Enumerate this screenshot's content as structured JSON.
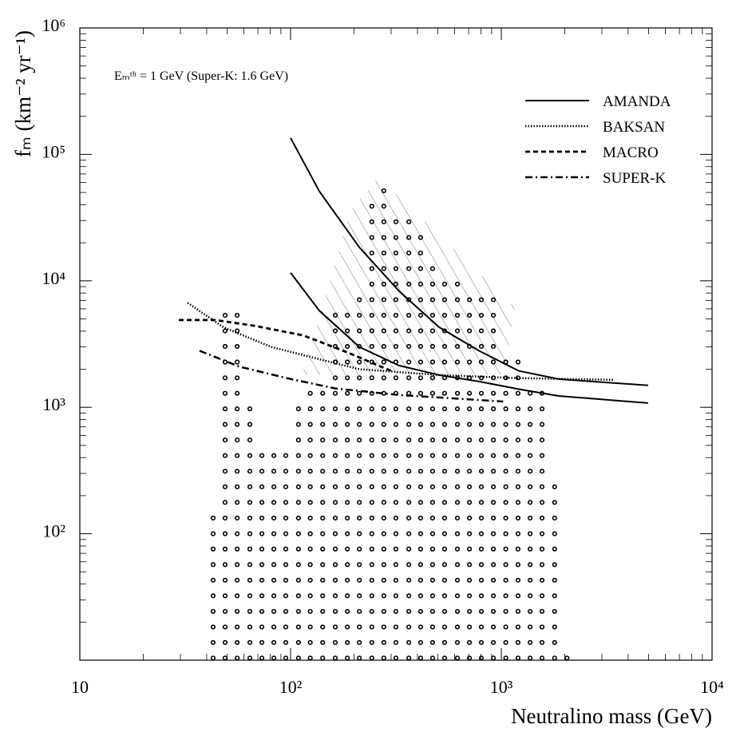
{
  "chart_data": {
    "type": "line",
    "log_x": true,
    "log_y": true,
    "xlabel": "Neutralino mass (GeV)",
    "ylabel": "fₘ (km⁻² yr⁻¹)",
    "annotation": "Eₘᵗʰ = 1 GeV (Super-K: 1.6 GeV)",
    "xlim": [
      10,
      10000
    ],
    "ylim": [
      10,
      1000000
    ],
    "xticks": [
      10,
      {
        "value": 100,
        "label": "10²"
      },
      {
        "value": 1000,
        "label": "10³"
      },
      {
        "value": 10000,
        "label": "10⁴"
      }
    ],
    "yticks": [
      {
        "value": 100,
        "label": "10²"
      },
      {
        "value": 1000,
        "label": "10³"
      },
      {
        "value": 10000,
        "label": "10⁴"
      },
      {
        "value": 100000,
        "label": "10⁵"
      },
      {
        "value": 1000000,
        "label": "10⁶"
      }
    ],
    "legend": "upper right",
    "series": [
      {
        "name": "AMANDA",
        "color": "#000000",
        "style": "solid",
        "x": [
          100,
          137,
          212,
          327,
          507,
          783,
          1210,
          1870,
          4970,
          null,
          100,
          137,
          212,
          327,
          507,
          783,
          1210,
          1870,
          4970
        ],
        "values": [
          135000,
          51000,
          18400,
          8300,
          4300,
          2800,
          1940,
          1670,
          1490,
          null,
          11600,
          5800,
          3000,
          2140,
          1800,
          1600,
          1390,
          1230,
          1080
        ]
      },
      {
        "name": "BAKSAN",
        "color": "#000000",
        "style": "dotted",
        "x": [
          32.5,
          48,
          81,
          137,
          212,
          507,
          1210,
          3450
        ],
        "values": [
          6700,
          4300,
          3000,
          2400,
          2000,
          1800,
          1700,
          1650
        ]
      },
      {
        "name": "MACRO",
        "color": "#000000",
        "style": "dashed",
        "x": [
          29.5,
          44,
          68,
          115,
          178,
          300
        ],
        "values": [
          4900,
          4900,
          4400,
          3700,
          2800,
          1940
        ]
      },
      {
        "name": "SUPER-K",
        "color": "#000000",
        "style": "dashdot",
        "x": [
          37,
          57,
          96,
          163,
          327,
          1020
        ],
        "values": [
          2800,
          2100,
          1700,
          1410,
          1250,
          1110
        ]
      }
    ],
    "dots": [
      {
        "x": 42.9,
        "y": [
          10.4,
          13.8,
          18.3,
          24.3,
          32.3,
          42.9,
          57,
          75.7,
          100,
          133
        ]
      },
      {
        "x": 48.9,
        "y": [
          10.4,
          13.8,
          18.3,
          24.3,
          32.3,
          42.9,
          57,
          75.7,
          100,
          133,
          177,
          235,
          312,
          415,
          551,
          732,
          972,
          1290,
          1710,
          2280,
          3030,
          4020,
          5340
        ]
      },
      {
        "x": 55.8,
        "y": [
          10.4,
          13.8,
          18.3,
          24.3,
          32.3,
          42.9,
          57,
          75.7,
          100,
          133,
          177,
          235,
          312,
          415,
          551,
          732,
          972,
          1290,
          1710,
          2280,
          3030,
          4020,
          5340
        ]
      },
      {
        "x": 64.1,
        "y": [
          10.4,
          13.8,
          18.3,
          24.3,
          32.3,
          42.9,
          57,
          75.7,
          100,
          133,
          177,
          235,
          312,
          415,
          551,
          732,
          972
        ]
      },
      {
        "x": 73.1,
        "y": [
          10.4,
          13.8,
          18.3,
          24.3,
          32.3,
          42.9,
          57,
          75.7,
          100,
          133,
          177,
          235,
          312,
          415
        ]
      },
      {
        "x": 83.3,
        "y": [
          10.4,
          13.8,
          18.3,
          24.3,
          32.3,
          42.9,
          57,
          75.7,
          100,
          133,
          177,
          235,
          312,
          415
        ]
      },
      {
        "x": 94.9,
        "y": [
          10.4,
          13.8,
          18.3,
          24.3,
          32.3,
          42.9,
          57,
          75.7,
          100,
          133,
          177,
          235,
          312,
          415
        ]
      },
      {
        "x": 109,
        "y": [
          10.4,
          13.8,
          18.3,
          24.3,
          32.3,
          42.9,
          57,
          75.7,
          100,
          133,
          177,
          235,
          312,
          415,
          551,
          732,
          972
        ]
      },
      {
        "x": 124,
        "y": [
          10.4,
          13.8,
          18.3,
          24.3,
          32.3,
          42.9,
          57,
          75.7,
          100,
          133,
          177,
          235,
          312,
          415,
          551,
          732,
          972,
          1290
        ]
      },
      {
        "x": 142,
        "y": [
          10.4,
          13.8,
          18.3,
          24.3,
          32.3,
          42.9,
          57,
          75.7,
          100,
          133,
          177,
          235,
          312,
          415,
          551,
          732,
          972,
          1290
        ]
      },
      {
        "x": 163,
        "y": [
          10.4,
          13.8,
          18.3,
          24.3,
          32.3,
          42.9,
          57,
          75.7,
          100,
          133,
          177,
          235,
          312,
          415,
          551,
          732,
          972,
          1290,
          1710,
          2280,
          3030,
          4020,
          5340
        ]
      },
      {
        "x": 186,
        "y": [
          10.4,
          13.8,
          18.3,
          24.3,
          32.3,
          42.9,
          57,
          75.7,
          100,
          133,
          177,
          235,
          312,
          415,
          551,
          732,
          972,
          1290,
          1710,
          2280,
          3030,
          4020,
          5340
        ]
      },
      {
        "x": 212,
        "y": [
          10.4,
          13.8,
          18.3,
          24.3,
          32.3,
          42.9,
          57,
          75.7,
          100,
          133,
          177,
          235,
          312,
          415,
          551,
          732,
          972,
          1290,
          1710,
          2280,
          3030,
          4020,
          5340,
          7090
        ]
      },
      {
        "x": 243,
        "y": [
          10.4,
          13.8,
          18.3,
          24.3,
          32.3,
          42.9,
          57,
          75.7,
          100,
          133,
          177,
          235,
          312,
          415,
          551,
          732,
          972,
          1290,
          1710,
          2280,
          3030,
          4020,
          5340,
          7090,
          9420,
          12500,
          16600,
          22000,
          29300,
          38900
        ]
      },
      {
        "x": 277,
        "y": [
          10.4,
          13.8,
          18.3,
          24.3,
          32.3,
          42.9,
          57,
          75.7,
          100,
          133,
          177,
          235,
          312,
          415,
          551,
          732,
          972,
          1290,
          1710,
          2280,
          3030,
          4020,
          5340,
          7090,
          9420,
          12500,
          16600,
          22000,
          29300,
          38900,
          51600
        ]
      },
      {
        "x": 316,
        "y": [
          10.4,
          13.8,
          18.3,
          24.3,
          32.3,
          42.9,
          57,
          75.7,
          100,
          133,
          177,
          235,
          312,
          415,
          551,
          732,
          972,
          1290,
          1710,
          2280,
          3030,
          4020,
          5340,
          7090,
          9420,
          12500,
          16600,
          22000,
          29300
        ]
      },
      {
        "x": 364,
        "y": [
          10.4,
          13.8,
          18.3,
          24.3,
          32.3,
          42.9,
          57,
          75.7,
          100,
          133,
          177,
          235,
          312,
          415,
          551,
          732,
          972,
          1290,
          1710,
          2280,
          3030,
          4020,
          5340,
          7090,
          9420,
          12500,
          16600,
          22000,
          29300
        ]
      },
      {
        "x": 414,
        "y": [
          10.4,
          13.8,
          18.3,
          24.3,
          32.3,
          42.9,
          57,
          75.7,
          100,
          133,
          177,
          235,
          312,
          415,
          551,
          732,
          972,
          1290,
          1710,
          2280,
          3030,
          4020,
          5340,
          7090,
          9420,
          12500,
          16600,
          22000
        ]
      },
      {
        "x": 472,
        "y": [
          10.4,
          13.8,
          18.3,
          24.3,
          32.3,
          42.9,
          57,
          75.7,
          100,
          133,
          177,
          235,
          312,
          415,
          551,
          732,
          972,
          1290,
          1710,
          2280,
          3030,
          4020,
          5340,
          7090,
          9420,
          12500
        ]
      },
      {
        "x": 538,
        "y": [
          10.4,
          13.8,
          18.3,
          24.3,
          32.3,
          42.9,
          57,
          75.7,
          100,
          133,
          177,
          235,
          312,
          415,
          551,
          732,
          972,
          1290,
          1710,
          2280,
          3030,
          4020,
          5340,
          7090,
          9420
        ]
      },
      {
        "x": 619,
        "y": [
          10.4,
          13.8,
          18.3,
          24.3,
          32.3,
          42.9,
          57,
          75.7,
          100,
          133,
          177,
          235,
          312,
          415,
          551,
          732,
          972,
          1290,
          1710,
          2280,
          3030,
          4020,
          5340,
          7090,
          9420
        ]
      },
      {
        "x": 706,
        "y": [
          10.4,
          13.8,
          18.3,
          24.3,
          32.3,
          42.9,
          57,
          75.7,
          100,
          133,
          177,
          235,
          312,
          415,
          551,
          732,
          972,
          1290,
          1710,
          2280,
          3030,
          4020,
          5340,
          7090
        ]
      },
      {
        "x": 804,
        "y": [
          10.4,
          13.8,
          18.3,
          24.3,
          32.3,
          42.9,
          57,
          75.7,
          100,
          133,
          177,
          235,
          312,
          415,
          551,
          732,
          972,
          1290,
          1710,
          2280,
          3030,
          4020,
          5340,
          7090
        ]
      },
      {
        "x": 917,
        "y": [
          10.4,
          13.8,
          18.3,
          24.3,
          32.3,
          42.9,
          57,
          75.7,
          100,
          133,
          177,
          235,
          312,
          415,
          551,
          732,
          972,
          1290,
          1710,
          2280,
          3030,
          4020,
          5340,
          7090
        ]
      },
      {
        "x": 1050,
        "y": [
          10.4,
          13.8,
          18.3,
          24.3,
          32.3,
          42.9,
          57,
          75.7,
          100,
          133,
          177,
          235,
          312,
          415,
          551,
          732,
          972,
          1290,
          1710,
          2280
        ]
      },
      {
        "x": 1200,
        "y": [
          10.4,
          13.8,
          18.3,
          24.3,
          32.3,
          42.9,
          57,
          75.7,
          100,
          133,
          177,
          235,
          312,
          415,
          551,
          732,
          972,
          1290,
          1710,
          2280
        ]
      },
      {
        "x": 1370,
        "y": [
          10.4,
          13.8,
          18.3,
          24.3,
          32.3,
          42.9,
          57,
          75.7,
          100,
          133,
          177,
          235,
          312,
          415,
          551,
          732,
          972,
          1290
        ]
      },
      {
        "x": 1560,
        "y": [
          10.4,
          13.8,
          18.3,
          24.3,
          32.3,
          42.9,
          57,
          75.7,
          100,
          133,
          177,
          235,
          312,
          415,
          551,
          732,
          972,
          1290
        ]
      },
      {
        "x": 1790,
        "y": [
          10.4,
          13.8,
          18.3,
          24.3,
          32.3,
          42.9,
          57,
          75.7,
          100,
          133,
          177,
          235
        ]
      },
      {
        "x": 2050,
        "y": [
          10.4
        ]
      }
    ]
  }
}
